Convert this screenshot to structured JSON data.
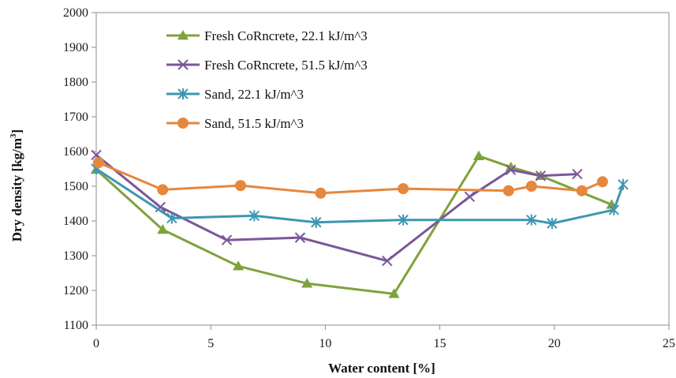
{
  "chart_data": {
    "type": "line",
    "title": "",
    "xlabel": "Water content [%]",
    "ylabel_main": "Dry density [kg/m",
    "ylabel_sup": "3",
    "ylabel_end": "]",
    "xlim": [
      0,
      25
    ],
    "ylim": [
      1100,
      2000
    ],
    "xticks": [
      "0",
      "5",
      "10",
      "15",
      "20",
      "25"
    ],
    "yticks": [
      "1100",
      "1200",
      "1300",
      "1400",
      "1500",
      "1600",
      "1700",
      "1800",
      "1900",
      "2000"
    ],
    "xtick_values": [
      0,
      5,
      10,
      15,
      20,
      25
    ],
    "ytick_values": [
      1100,
      1200,
      1300,
      1400,
      1500,
      1600,
      1700,
      1800,
      1900,
      2000
    ],
    "grid": false,
    "legend_position": "top-left",
    "series": [
      {
        "name": "Fresh CoRncrete, 22.1 kJ/m^3",
        "color": "#7fa23c",
        "marker": "triangle",
        "x": [
          0.0,
          2.9,
          6.2,
          9.2,
          13.0,
          16.7,
          18.1,
          19.4,
          22.5
        ],
        "y": [
          1548,
          1375,
          1270,
          1220,
          1190,
          1587,
          1555,
          1530,
          1447
        ]
      },
      {
        "name": "Fresh CoRncrete,  51.5 kJ/m^3",
        "color": "#7a5799",
        "marker": "x",
        "x": [
          0.0,
          2.8,
          5.7,
          8.9,
          12.7,
          16.3,
          18.1,
          19.4,
          21.0
        ],
        "y": [
          1590,
          1440,
          1345,
          1352,
          1285,
          1470,
          1547,
          1530,
          1535
        ]
      },
      {
        "name": "Sand, 22.1 kJ/m^3",
        "color": "#3d96b3",
        "marker": "asterisk",
        "x": [
          0.0,
          3.3,
          6.9,
          9.6,
          13.4,
          19.0,
          19.9,
          22.6,
          23.0
        ],
        "y": [
          1550,
          1408,
          1415,
          1396,
          1403,
          1403,
          1393,
          1432,
          1505
        ]
      },
      {
        "name": "Sand, 51.5 kJ/m^3",
        "color": "#e5873d",
        "marker": "circle",
        "x": [
          0.1,
          2.9,
          6.3,
          9.8,
          13.4,
          18.0,
          19.0,
          21.2,
          22.1
        ],
        "y": [
          1568,
          1490,
          1502,
          1480,
          1493,
          1487,
          1500,
          1487,
          1513
        ]
      }
    ]
  }
}
